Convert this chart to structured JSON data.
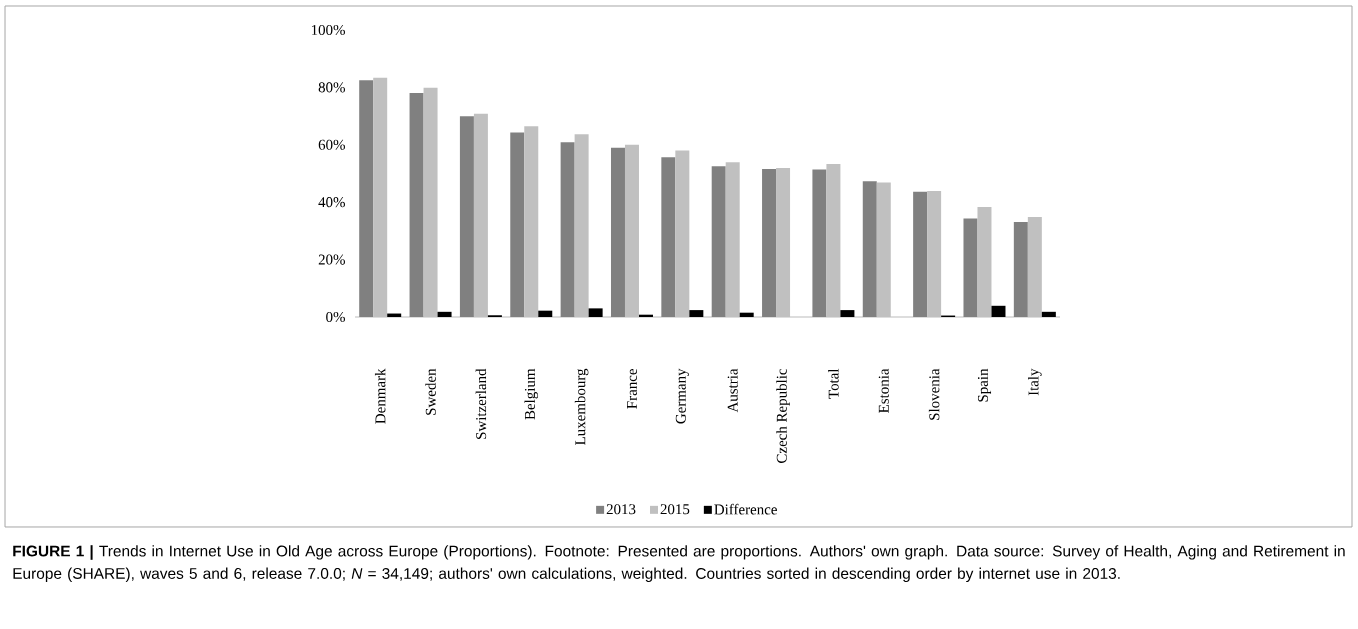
{
  "chart_data": {
    "type": "bar",
    "categories": [
      "Denmark",
      "Sweden",
      "Switzerland",
      "Belgium",
      "Luxembourg",
      "France",
      "Germany",
      "Austria",
      "Czech Republic",
      "Total",
      "Estonia",
      "Slovenia",
      "Spain",
      "Italy"
    ],
    "series": [
      {
        "name": "2013",
        "color": "#808080",
        "values": [
          82.5,
          78.0,
          69.9,
          64.3,
          60.9,
          59.0,
          55.7,
          52.5,
          51.6,
          51.4,
          47.3,
          43.6,
          34.3,
          33.1
        ]
      },
      {
        "name": "2015",
        "color": "#c0c0c0",
        "values": [
          83.4,
          79.9,
          70.8,
          66.5,
          63.7,
          60.0,
          58.0,
          53.9,
          51.9,
          53.3,
          46.9,
          43.9,
          38.3,
          34.8
        ]
      },
      {
        "name": "Difference",
        "color": "#000000",
        "values": [
          1.2,
          1.8,
          0.6,
          2.2,
          3.0,
          0.8,
          2.4,
          1.5,
          0,
          2.4,
          0,
          0.5,
          3.9,
          1.8
        ]
      }
    ],
    "ylim": [
      0,
      100
    ],
    "yticks": [
      {
        "value": 0,
        "label": "0%"
      },
      {
        "value": 20,
        "label": "20%"
      },
      {
        "value": 40,
        "label": "40%"
      },
      {
        "value": 60,
        "label": "60%"
      },
      {
        "value": 80,
        "label": "80%"
      },
      {
        "value": 100,
        "label": "100%"
      }
    ],
    "legend": "bottom",
    "annotations": [
      "**FIGURE 1 |** Trends in Internet Use in Old Age across Europe (Proportions). Footnote: Presented are proportions. Authors' own graph. Data source: Survey of Health, Aging and Retirement in Europe (SHARE), waves 5 and 6, release 7.0.0; *N* = 34,149; authors' own calculations, weighted. Countries sorted in descending order by internet use in 2013."
    ]
  }
}
